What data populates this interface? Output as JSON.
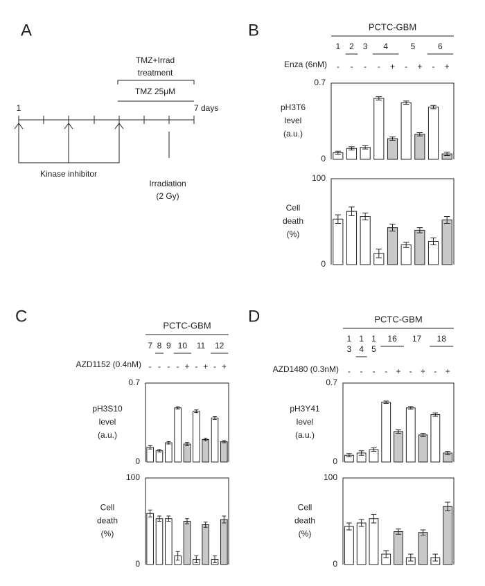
{
  "panel_a": {
    "label": "A",
    "treatment_lines": [
      "TMZ+Irrad",
      "treatment"
    ],
    "tmz": "TMZ 25μM",
    "start": "1",
    "end": "7 days",
    "kinase": "Kinase inhibitor",
    "irradiation": [
      "Irradiation",
      "(2 Gy)"
    ]
  },
  "panels": [
    {
      "label": "B",
      "title": "PCTC-GBM",
      "group_labels": [
        [
          "1"
        ],
        [
          "2"
        ],
        [
          "3"
        ],
        [
          "4"
        ],
        [
          "5"
        ],
        [
          "6"
        ]
      ],
      "treatment": "Enza (6nM)",
      "signs": [
        "-",
        "-",
        "-",
        "-",
        "+",
        "-",
        "+",
        "-",
        "+"
      ]
    },
    {
      "label": "C",
      "title": "PCTC-GBM",
      "group_labels": [
        [
          "7"
        ],
        [
          "8"
        ],
        [
          "9"
        ],
        [
          "10"
        ],
        [
          "11"
        ],
        [
          "12"
        ]
      ],
      "treatment": "AZD1152 (0.4nM)",
      "signs": [
        "-",
        "-",
        "-",
        "-",
        "+",
        "-",
        "+",
        "-",
        "+"
      ]
    },
    {
      "label": "D",
      "title": "PCTC-GBM",
      "group_labels": [
        [
          "1",
          "3"
        ],
        [
          "1",
          "4"
        ],
        [
          "1",
          "5"
        ],
        [
          "16"
        ],
        [
          "17"
        ],
        [
          "18"
        ]
      ],
      "treatment": "AZD1480 (0.3nM)",
      "signs": [
        "-",
        "-",
        "-",
        "-",
        "+",
        "-",
        "+",
        "-",
        "+"
      ]
    }
  ],
  "chart_data": [
    {
      "type": "bar",
      "ylabel": [
        "pH3T6",
        "level",
        "(a.u.)"
      ],
      "ylim": [
        0,
        0.7
      ],
      "yticks": [
        0,
        0.7
      ],
      "values": [
        0.06,
        0.1,
        0.11,
        0.56,
        0.19,
        0.52,
        0.23,
        0.48,
        0.05
      ],
      "errors": [
        0.015,
        0.015,
        0.015,
        0.015,
        0.015,
        0.015,
        0.015,
        0.015,
        0.015
      ],
      "colors": [
        "#ffffff",
        "#ffffff",
        "#ffffff",
        "#ffffff",
        "#c8c8c8",
        "#ffffff",
        "#c8c8c8",
        "#ffffff",
        "#c8c8c8"
      ]
    },
    {
      "type": "bar",
      "ylabel": [
        "Cell",
        "death",
        "(%)"
      ],
      "ylim": [
        0,
        100
      ],
      "yticks": [
        0,
        100
      ],
      "values": [
        53,
        62,
        56,
        13,
        43,
        23,
        40,
        27,
        52
      ],
      "errors": [
        5,
        5,
        4,
        5,
        4,
        3,
        3,
        4,
        4
      ],
      "colors": [
        "#ffffff",
        "#ffffff",
        "#ffffff",
        "#ffffff",
        "#c8c8c8",
        "#ffffff",
        "#c8c8c8",
        "#ffffff",
        "#c8c8c8"
      ]
    },
    {
      "type": "bar",
      "ylabel": [
        "pH3S10",
        "level",
        "(a.u.)"
      ],
      "ylim": [
        0,
        0.7
      ],
      "yticks": [
        0,
        0.7
      ],
      "values": [
        0.13,
        0.1,
        0.17,
        0.48,
        0.16,
        0.45,
        0.2,
        0.39,
        0.18
      ],
      "errors": [
        0.015,
        0.012,
        0.01,
        0.01,
        0.015,
        0.012,
        0.012,
        0.012,
        0.01
      ],
      "colors": [
        "#ffffff",
        "#ffffff",
        "#ffffff",
        "#ffffff",
        "#c8c8c8",
        "#ffffff",
        "#c8c8c8",
        "#ffffff",
        "#c8c8c8"
      ]
    },
    {
      "type": "bar",
      "ylabel": [
        "Cell",
        "death",
        "(%)"
      ],
      "ylim": [
        0,
        100
      ],
      "yticks": [
        0,
        100
      ],
      "values": [
        59,
        53,
        53,
        10,
        50,
        6,
        46,
        6,
        52
      ],
      "errors": [
        4,
        3,
        3,
        5,
        3,
        4,
        3,
        4,
        4
      ],
      "colors": [
        "#ffffff",
        "#ffffff",
        "#ffffff",
        "#ffffff",
        "#c8c8c8",
        "#ffffff",
        "#c8c8c8",
        "#ffffff",
        "#c8c8c8"
      ]
    },
    {
      "type": "bar",
      "ylabel": [
        "pH3Y41",
        "level",
        "(a.u.)"
      ],
      "ylim": [
        0,
        0.7
      ],
      "yticks": [
        0,
        0.7
      ],
      "values": [
        0.06,
        0.08,
        0.11,
        0.53,
        0.27,
        0.48,
        0.24,
        0.42,
        0.08
      ],
      "errors": [
        0.015,
        0.02,
        0.015,
        0.01,
        0.015,
        0.012,
        0.015,
        0.015,
        0.015
      ],
      "colors": [
        "#ffffff",
        "#ffffff",
        "#ffffff",
        "#ffffff",
        "#c8c8c8",
        "#ffffff",
        "#c8c8c8",
        "#ffffff",
        "#c8c8c8"
      ]
    },
    {
      "type": "bar",
      "ylabel": [
        "Cell",
        "death",
        "(%)"
      ],
      "ylim": [
        0,
        100
      ],
      "yticks": [
        0,
        100
      ],
      "values": [
        44,
        48,
        53,
        12,
        38,
        8,
        37,
        8,
        67
      ],
      "errors": [
        4,
        4,
        5,
        4,
        3,
        4,
        3,
        4,
        5
      ],
      "colors": [
        "#ffffff",
        "#ffffff",
        "#ffffff",
        "#ffffff",
        "#c8c8c8",
        "#ffffff",
        "#c8c8c8",
        "#ffffff",
        "#c8c8c8"
      ]
    }
  ]
}
